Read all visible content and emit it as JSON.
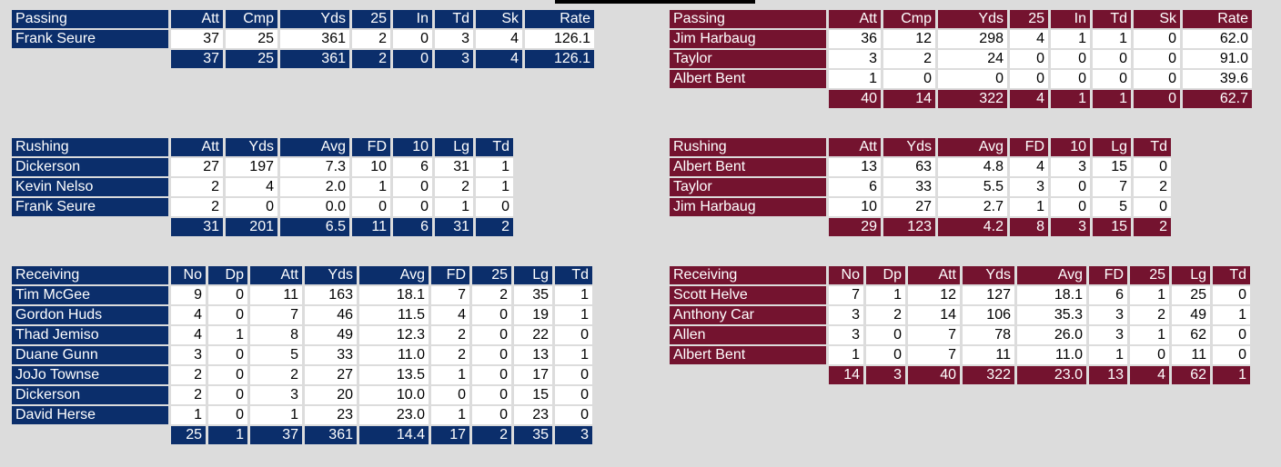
{
  "colors": {
    "home": "#0b2e6b",
    "away": "#74132f",
    "background": "#dcdcdc"
  },
  "home": {
    "passing": {
      "headers": [
        "Passing",
        "Att",
        "Cmp",
        "Yds",
        "25",
        "In",
        "Td",
        "Sk",
        "Rate"
      ],
      "rows": [
        [
          "Frank Seure",
          "37",
          "25",
          "361",
          "2",
          "0",
          "3",
          "4",
          "126.1"
        ]
      ],
      "totals": [
        "37",
        "25",
        "361",
        "2",
        "0",
        "3",
        "4",
        "126.1"
      ]
    },
    "rushing": {
      "headers": [
        "Rushing",
        "Att",
        "Yds",
        "Avg",
        "FD",
        "10",
        "Lg",
        "Td"
      ],
      "rows": [
        [
          "Dickerson",
          "27",
          "197",
          "7.3",
          "10",
          "6",
          "31",
          "1"
        ],
        [
          "Kevin Nelso",
          "2",
          "4",
          "2.0",
          "1",
          "0",
          "2",
          "1"
        ],
        [
          "Frank Seure",
          "2",
          "0",
          "0.0",
          "0",
          "0",
          "1",
          "0"
        ]
      ],
      "totals": [
        "31",
        "201",
        "6.5",
        "11",
        "6",
        "31",
        "2"
      ]
    },
    "receiving": {
      "headers": [
        "Receiving",
        "No",
        "Dp",
        "Att",
        "Yds",
        "Avg",
        "FD",
        "25",
        "Lg",
        "Td"
      ],
      "rows": [
        [
          "Tim McGee",
          "9",
          "0",
          "11",
          "163",
          "18.1",
          "7",
          "2",
          "35",
          "1"
        ],
        [
          "Gordon Huds",
          "4",
          "0",
          "7",
          "46",
          "11.5",
          "4",
          "0",
          "19",
          "1"
        ],
        [
          "Thad Jemiso",
          "4",
          "1",
          "8",
          "49",
          "12.3",
          "2",
          "0",
          "22",
          "0"
        ],
        [
          "Duane Gunn",
          "3",
          "0",
          "5",
          "33",
          "11.0",
          "2",
          "0",
          "13",
          "1"
        ],
        [
          "JoJo Townse",
          "2",
          "0",
          "2",
          "27",
          "13.5",
          "1",
          "0",
          "17",
          "0"
        ],
        [
          "Dickerson",
          "2",
          "0",
          "3",
          "20",
          "10.0",
          "0",
          "0",
          "15",
          "0"
        ],
        [
          "David Herse",
          "1",
          "0",
          "1",
          "23",
          "23.0",
          "1",
          "0",
          "23",
          "0"
        ]
      ],
      "totals": [
        "25",
        "1",
        "37",
        "361",
        "14.4",
        "17",
        "2",
        "35",
        "3"
      ]
    }
  },
  "away": {
    "passing": {
      "headers": [
        "Passing",
        "Att",
        "Cmp",
        "Yds",
        "25",
        "In",
        "Td",
        "Sk",
        "Rate"
      ],
      "rows": [
        [
          "Jim Harbaug",
          "36",
          "12",
          "298",
          "4",
          "1",
          "1",
          "0",
          "62.0"
        ],
        [
          "Taylor",
          "3",
          "2",
          "24",
          "0",
          "0",
          "0",
          "0",
          "91.0"
        ],
        [
          "Albert Bent",
          "1",
          "0",
          "0",
          "0",
          "0",
          "0",
          "0",
          "39.6"
        ]
      ],
      "totals": [
        "40",
        "14",
        "322",
        "4",
        "1",
        "1",
        "0",
        "62.7"
      ]
    },
    "rushing": {
      "headers": [
        "Rushing",
        "Att",
        "Yds",
        "Avg",
        "FD",
        "10",
        "Lg",
        "Td"
      ],
      "rows": [
        [
          "Albert Bent",
          "13",
          "63",
          "4.8",
          "4",
          "3",
          "15",
          "0"
        ],
        [
          "Taylor",
          "6",
          "33",
          "5.5",
          "3",
          "0",
          "7",
          "2"
        ],
        [
          "Jim Harbaug",
          "10",
          "27",
          "2.7",
          "1",
          "0",
          "5",
          "0"
        ]
      ],
      "totals": [
        "29",
        "123",
        "4.2",
        "8",
        "3",
        "15",
        "2"
      ]
    },
    "receiving": {
      "headers": [
        "Receiving",
        "No",
        "Dp",
        "Att",
        "Yds",
        "Avg",
        "FD",
        "25",
        "Lg",
        "Td"
      ],
      "rows": [
        [
          "Scott Helve",
          "7",
          "1",
          "12",
          "127",
          "18.1",
          "6",
          "1",
          "25",
          "0"
        ],
        [
          "Anthony Car",
          "3",
          "2",
          "14",
          "106",
          "35.3",
          "3",
          "2",
          "49",
          "1"
        ],
        [
          "Allen",
          "3",
          "0",
          "7",
          "78",
          "26.0",
          "3",
          "1",
          "62",
          "0"
        ],
        [
          "Albert Bent",
          "1",
          "0",
          "7",
          "11",
          "11.0",
          "1",
          "0",
          "11",
          "0"
        ]
      ],
      "totals": [
        "14",
        "3",
        "40",
        "322",
        "23.0",
        "13",
        "4",
        "62",
        "1"
      ]
    }
  }
}
